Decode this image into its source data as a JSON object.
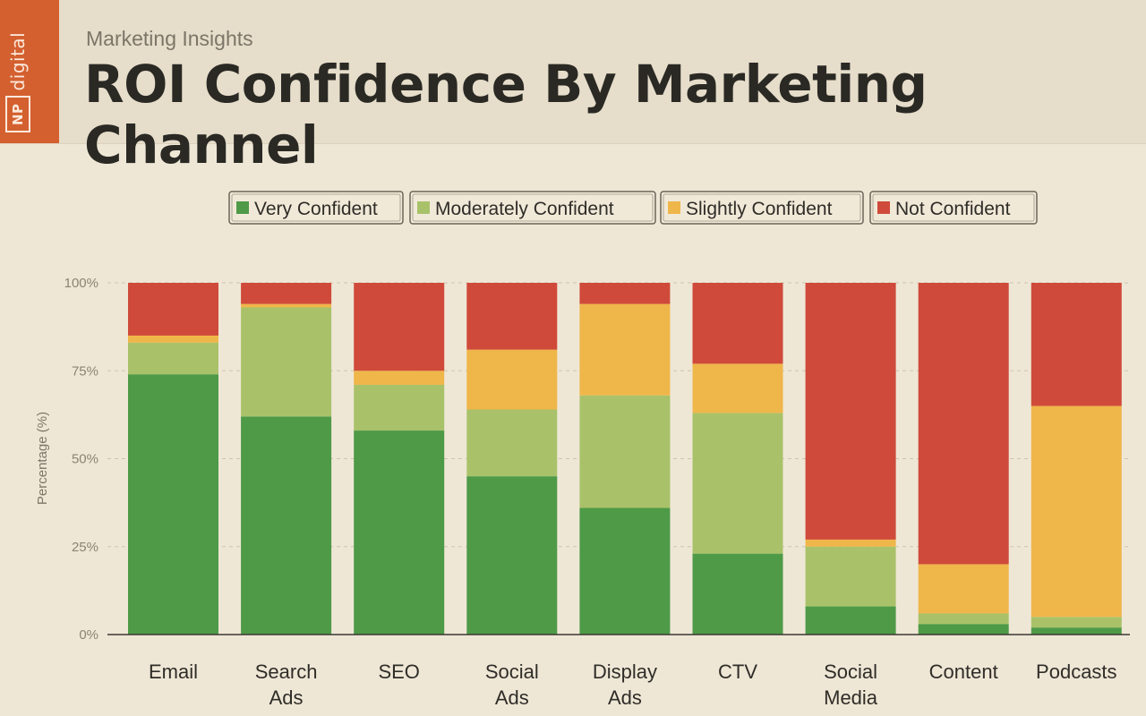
{
  "brand": {
    "box": "NP",
    "word": "digital"
  },
  "header": {
    "kicker": "Marketing Insights",
    "title": "ROI Confidence By Marketing Channel"
  },
  "chart_data": {
    "type": "bar",
    "stacked": true,
    "ylabel": "Percentage (%)",
    "ylim": [
      0,
      100
    ],
    "yticks": [
      "0%",
      "25%",
      "50%",
      "75%",
      "100%"
    ],
    "grid": true,
    "legend_position": "top-center",
    "categories": [
      "Email",
      "Search Ads",
      "SEO",
      "Social Ads",
      "Display Ads",
      "CTV",
      "Social Media",
      "Content",
      "Podcasts"
    ],
    "series": [
      {
        "name": "Very Confident",
        "color": "#4e9a47",
        "values": [
          74,
          62,
          58,
          45,
          36,
          23,
          8,
          3,
          2
        ]
      },
      {
        "name": "Moderately Confident",
        "color": "#a9c26a",
        "values": [
          9,
          31,
          13,
          19,
          32,
          40,
          17,
          3,
          3
        ]
      },
      {
        "name": "Slightly Confident",
        "color": "#efb64a",
        "values": [
          2,
          1,
          4,
          17,
          26,
          14,
          2,
          14,
          60
        ]
      },
      {
        "name": "Not Confident",
        "color": "#cf4a3a",
        "values": [
          15,
          6,
          25,
          19,
          6,
          23,
          73,
          80,
          35
        ]
      }
    ]
  }
}
